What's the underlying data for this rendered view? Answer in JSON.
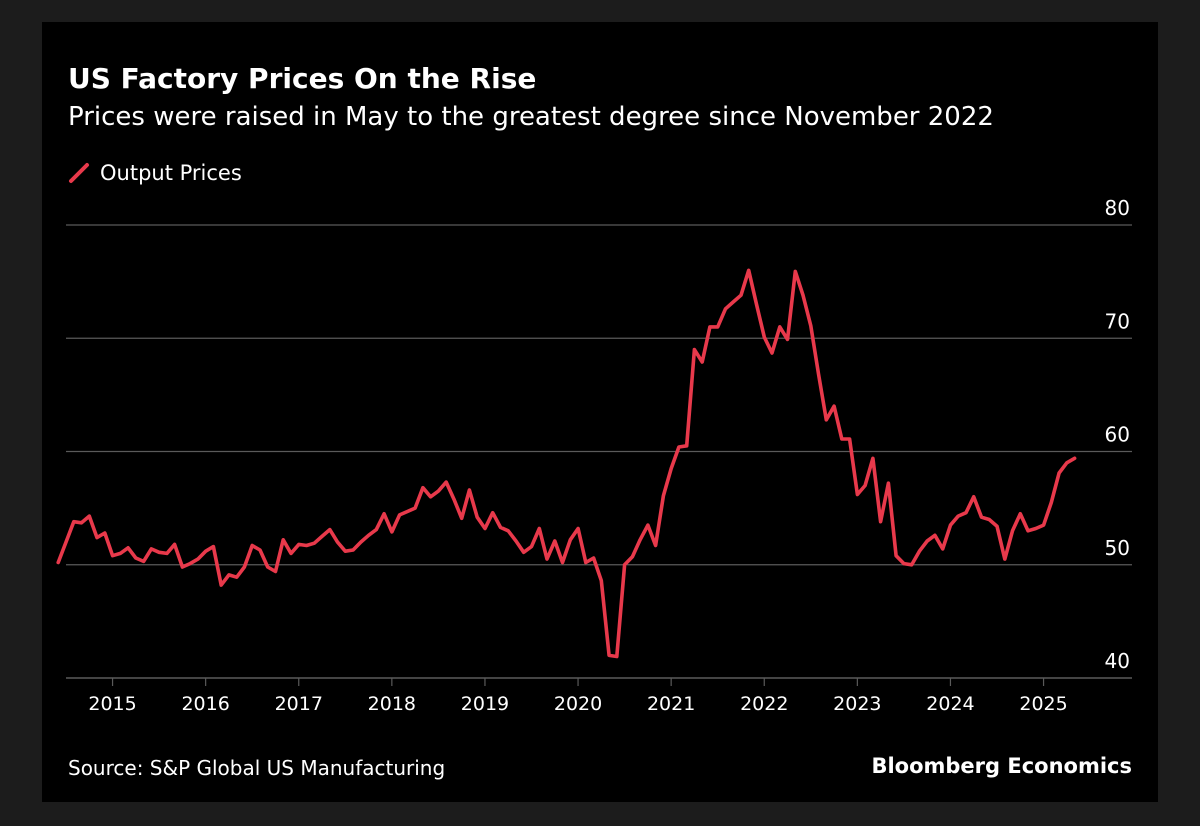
{
  "header": {
    "title": "US Factory Prices On the Rise",
    "subtitle": "Prices were raised in May to the greatest degree since November 2022"
  },
  "footer": {
    "source": "Source: S&P Global US Manufacturing",
    "brand": "Bloomberg Economics"
  },
  "colors": {
    "background": "#000000",
    "series": "#e8394b",
    "grid": "#5a5a5a",
    "text": "#ffffff"
  },
  "chart_data": {
    "type": "line",
    "title": "US Factory Prices On the Rise",
    "subtitle": "Prices were raised in May to the greatest degree since November 2022",
    "xlabel": "",
    "ylabel": "",
    "ylim": [
      40,
      80
    ],
    "xlim": [
      2014.5,
      2025.95
    ],
    "y_ticks": [
      40,
      50,
      60,
      70,
      80
    ],
    "x_ticks": [
      "2015",
      "2016",
      "2017",
      "2018",
      "2019",
      "2020",
      "2021",
      "2022",
      "2023",
      "2024",
      "2025"
    ],
    "x_tick_values": [
      2015,
      2016,
      2017,
      2018,
      2019,
      2020,
      2021,
      2022,
      2023,
      2024,
      2025
    ],
    "y_axis_side": "right",
    "grid": "horizontal",
    "legend": {
      "position": "top-left",
      "entries": [
        "Output Prices"
      ]
    },
    "series": [
      {
        "name": "Output Prices",
        "start": "2014-06",
        "frequency": "monthly",
        "values": [
          50.2,
          52.0,
          53.8,
          53.7,
          54.3,
          52.4,
          52.8,
          50.8,
          51.0,
          51.5,
          50.6,
          50.3,
          51.4,
          51.1,
          51.0,
          51.8,
          49.8,
          50.1,
          50.5,
          51.2,
          51.6,
          48.2,
          49.1,
          48.9,
          49.8,
          51.7,
          51.3,
          49.8,
          49.4,
          52.2,
          51.0,
          51.8,
          51.7,
          51.9,
          52.5,
          53.1,
          52.0,
          51.2,
          51.3,
          52.0,
          52.6,
          53.1,
          54.5,
          52.9,
          54.4,
          54.7,
          55.0,
          56.8,
          56.0,
          56.5,
          57.3,
          55.8,
          54.1,
          56.6,
          54.2,
          53.2,
          54.6,
          53.3,
          53.0,
          52.1,
          51.1,
          51.6,
          53.2,
          50.5,
          52.1,
          50.2,
          52.2,
          53.2,
          50.2,
          50.6,
          48.6,
          42.0,
          41.9,
          50.0,
          50.7,
          52.2,
          53.5,
          51.7,
          56.1,
          58.5,
          60.4,
          60.5,
          69.0,
          67.9,
          71.0,
          71.0,
          72.6,
          73.2,
          73.8,
          76.0,
          73.0,
          70.1,
          68.7,
          71.0,
          69.9,
          75.9,
          73.8,
          71.1,
          66.8,
          62.8,
          64.0,
          61.1,
          61.1,
          56.2,
          57.0,
          59.4,
          53.8,
          57.2,
          50.8,
          50.1,
          50.0,
          51.2,
          52.1,
          52.6,
          51.4,
          53.5,
          54.3,
          54.6,
          56.0,
          54.2,
          54.0,
          53.4,
          50.5,
          53.0,
          54.5,
          53.0,
          53.2,
          53.5,
          55.5,
          58.1,
          59.0,
          59.4
        ]
      }
    ]
  }
}
